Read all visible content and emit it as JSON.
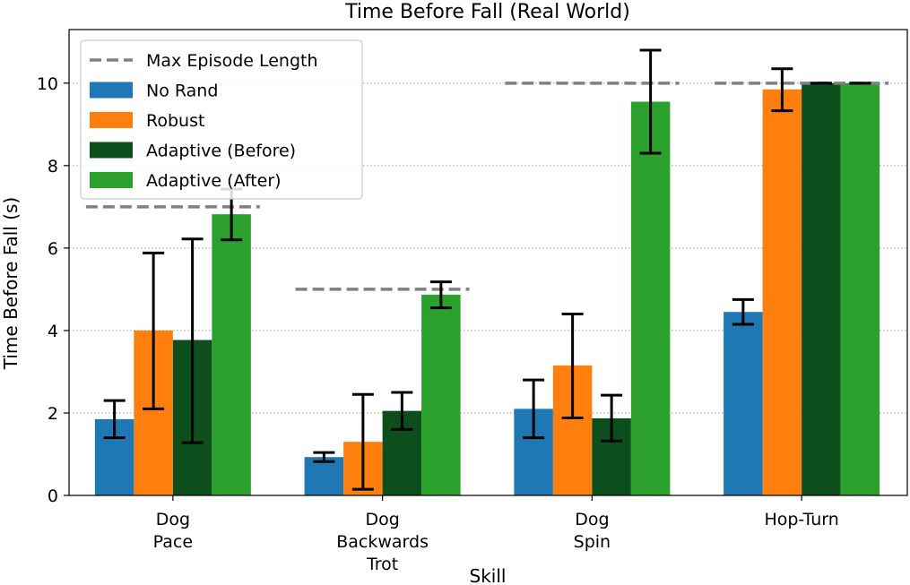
{
  "chart_data": {
    "type": "bar",
    "title": "Time Before Fall (Real World)",
    "xlabel": "Skill",
    "ylabel": "Time Before Fall (s)",
    "ylim": [
      0,
      11.3
    ],
    "yticks": [
      0,
      2,
      4,
      6,
      8,
      10
    ],
    "grid": "horizontal dotted",
    "legend_position": "top-left",
    "categories": [
      [
        "Dog",
        "Pace"
      ],
      [
        "Dog",
        "Backwards",
        "Trot"
      ],
      [
        "Dog",
        "Spin"
      ],
      [
        "Hop-Turn"
      ]
    ],
    "series": [
      {
        "name": "No Rand",
        "color": "#1f77b4",
        "values": [
          1.85,
          0.93,
          2.1,
          4.45
        ],
        "error_low": [
          1.4,
          0.82,
          1.4,
          4.15
        ],
        "error_high": [
          2.3,
          1.04,
          2.8,
          4.75
        ]
      },
      {
        "name": "Robust",
        "color": "#ff7f0e",
        "values": [
          4.0,
          1.3,
          3.15,
          9.85
        ],
        "error_low": [
          2.1,
          0.15,
          1.88,
          9.33
        ],
        "error_high": [
          5.88,
          2.45,
          4.4,
          10.35
        ]
      },
      {
        "name": "Adaptive (Before)",
        "color": "#0d4e1d",
        "values": [
          3.77,
          2.05,
          1.87,
          10.0
        ],
        "error_low": [
          1.28,
          1.6,
          1.32,
          10.0
        ],
        "error_high": [
          6.22,
          2.5,
          2.43,
          10.0
        ]
      },
      {
        "name": "Adaptive (After)",
        "color": "#2ca02c",
        "values": [
          6.82,
          4.87,
          9.55,
          10.0
        ],
        "error_low": [
          6.2,
          4.55,
          8.3,
          10.0
        ],
        "error_high": [
          7.43,
          5.18,
          10.8,
          10.0
        ]
      }
    ],
    "max_episode_length": {
      "name": "Max Episode Length",
      "color": "#808080",
      "values": [
        7,
        5,
        10,
        10
      ]
    }
  }
}
